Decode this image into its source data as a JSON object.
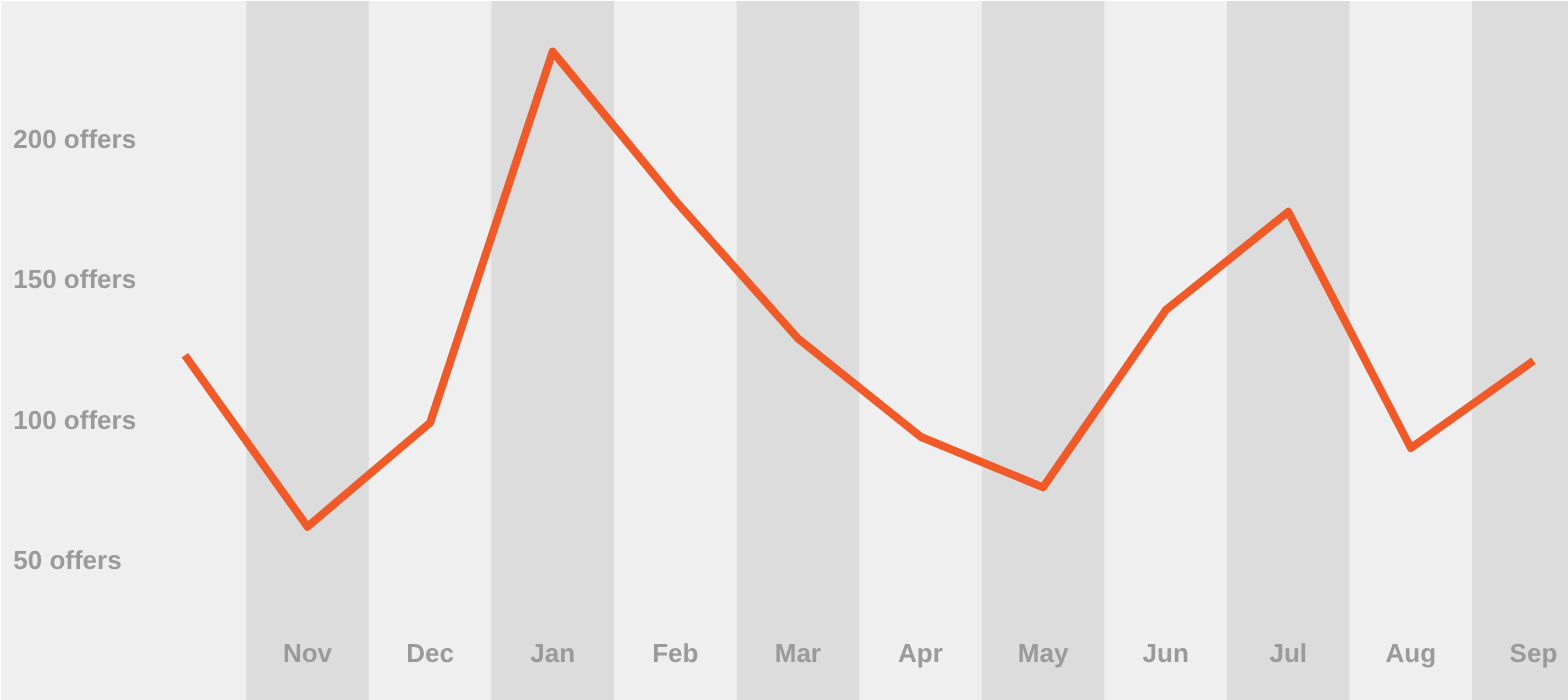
{
  "chart_data": {
    "type": "line",
    "categories": [
      null,
      "Nov",
      "Dec",
      "Jan",
      "Feb",
      "Mar",
      "Apr",
      "May",
      "Jun",
      "Jul",
      "Aug",
      "Sep"
    ],
    "series": [
      {
        "color": "#f05a28",
        "values": [
          123,
          62,
          99,
          231,
          178,
          129,
          94,
          76,
          139,
          174,
          90,
          121
        ]
      }
    ],
    "ylim": [
      0,
      249
    ],
    "yticks": [
      {
        "value": 50,
        "label": "50 offers"
      },
      {
        "value": 100,
        "label": "100 offers"
      },
      {
        "value": 150,
        "label": "150 offers"
      },
      {
        "value": 200,
        "label": "200 offers"
      }
    ],
    "bands": [
      {
        "axis": "x",
        "from": "Nov",
        "to": "Nov",
        "color": "#dcdcdc"
      },
      {
        "axis": "x",
        "from": "Jan",
        "to": "Jan",
        "color": "#dcdcdc"
      },
      {
        "axis": "x",
        "from": "Mar",
        "to": "Mar",
        "color": "#dcdcdc"
      },
      {
        "axis": "x",
        "from": "May",
        "to": "May",
        "color": "#dcdcdc"
      },
      {
        "axis": "x",
        "from": "Jul",
        "to": "Jul",
        "color": "#dcdcdc"
      },
      {
        "axis": "x",
        "from": "Sep",
        "to": "Sep",
        "color": "#dcdcdc"
      }
    ],
    "grid": false,
    "marker": "none",
    "line_style": "solid"
  }
}
